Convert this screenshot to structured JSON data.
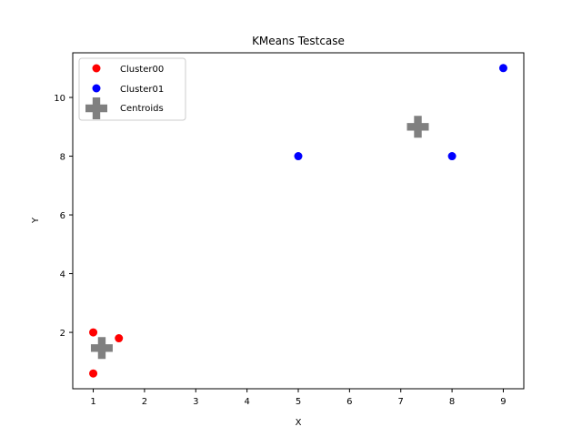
{
  "chart_data": {
    "type": "scatter",
    "title": "KMeans Testcase",
    "xlabel": "X",
    "ylabel": "Y",
    "xlim": [
      0.6,
      9.4
    ],
    "ylim": [
      0.08,
      11.52
    ],
    "xticks": [
      1,
      2,
      3,
      4,
      5,
      6,
      7,
      8,
      9
    ],
    "yticks": [
      2,
      4,
      6,
      8,
      10
    ],
    "grid": false,
    "legend_position": "top-left",
    "series": [
      {
        "name": "Cluster00",
        "color": "#ff0000",
        "marker": "circle",
        "points": [
          {
            "x": 1.0,
            "y": 2.0
          },
          {
            "x": 1.5,
            "y": 1.8
          },
          {
            "x": 1.0,
            "y": 0.6
          }
        ]
      },
      {
        "name": "Cluster01",
        "color": "#0000ff",
        "marker": "circle",
        "points": [
          {
            "x": 5.0,
            "y": 8.0
          },
          {
            "x": 8.0,
            "y": 8.0
          },
          {
            "x": 9.0,
            "y": 11.0
          }
        ]
      },
      {
        "name": "Centroids",
        "color": "#808080",
        "marker": "plus",
        "points": [
          {
            "x": 1.1667,
            "y": 1.4667
          },
          {
            "x": 7.3333,
            "y": 9.0
          }
        ]
      }
    ]
  }
}
